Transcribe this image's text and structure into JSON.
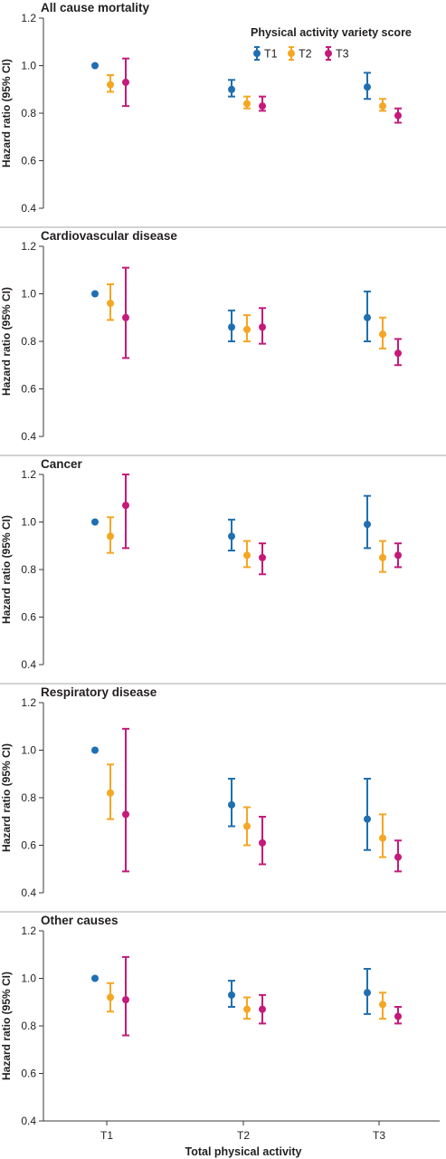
{
  "chart_data": {
    "type": "scatter",
    "subtype": "forest-plot-with-error-bars",
    "xlabel": "Total physical activity",
    "x_categories": [
      "T1",
      "T2",
      "T3"
    ],
    "legend": {
      "title": "Physical activity variety score",
      "placement": "top-right",
      "series": [
        {
          "name": "T1",
          "color": "#1f6fb2"
        },
        {
          "name": "T2",
          "color": "#f5a623"
        },
        {
          "name": "T3",
          "color": "#c51a7b"
        }
      ]
    },
    "ylabel": "Hazard ratio (95% CI)",
    "ylim": [
      0.4,
      1.2
    ],
    "yticks": [
      "0.4",
      "0.6",
      "0.8",
      "1.0",
      "1.2"
    ],
    "grid": false,
    "panels": [
      {
        "title": "All cause mortality",
        "points": {
          "T1": [
            {
              "hr": 1.0,
              "lo": null,
              "hi": null
            },
            {
              "hr": 0.9,
              "lo": 0.87,
              "hi": 0.94
            },
            {
              "hr": 0.91,
              "lo": 0.86,
              "hi": 0.97
            }
          ],
          "T2": [
            {
              "hr": 0.92,
              "lo": 0.89,
              "hi": 0.96
            },
            {
              "hr": 0.84,
              "lo": 0.82,
              "hi": 0.87
            },
            {
              "hr": 0.83,
              "lo": 0.81,
              "hi": 0.86
            }
          ],
          "T3": [
            {
              "hr": 0.93,
              "lo": 0.83,
              "hi": 1.03
            },
            {
              "hr": 0.83,
              "lo": 0.81,
              "hi": 0.87
            },
            {
              "hr": 0.79,
              "lo": 0.76,
              "hi": 0.82
            }
          ]
        }
      },
      {
        "title": "Cardiovascular disease",
        "points": {
          "T1": [
            {
              "hr": 1.0,
              "lo": null,
              "hi": null
            },
            {
              "hr": 0.86,
              "lo": 0.8,
              "hi": 0.93
            },
            {
              "hr": 0.9,
              "lo": 0.8,
              "hi": 1.01
            }
          ],
          "T2": [
            {
              "hr": 0.96,
              "lo": 0.89,
              "hi": 1.04
            },
            {
              "hr": 0.85,
              "lo": 0.8,
              "hi": 0.91
            },
            {
              "hr": 0.83,
              "lo": 0.77,
              "hi": 0.9
            }
          ],
          "T3": [
            {
              "hr": 0.9,
              "lo": 0.73,
              "hi": 1.11
            },
            {
              "hr": 0.86,
              "lo": 0.79,
              "hi": 0.94
            },
            {
              "hr": 0.75,
              "lo": 0.7,
              "hi": 0.81
            }
          ]
        }
      },
      {
        "title": "Cancer",
        "points": {
          "T1": [
            {
              "hr": 1.0,
              "lo": null,
              "hi": null
            },
            {
              "hr": 0.94,
              "lo": 0.88,
              "hi": 1.01
            },
            {
              "hr": 0.99,
              "lo": 0.89,
              "hi": 1.11
            }
          ],
          "T2": [
            {
              "hr": 0.94,
              "lo": 0.87,
              "hi": 1.02
            },
            {
              "hr": 0.86,
              "lo": 0.81,
              "hi": 0.92
            },
            {
              "hr": 0.85,
              "lo": 0.79,
              "hi": 0.92
            }
          ],
          "T3": [
            {
              "hr": 1.07,
              "lo": 0.89,
              "hi": 1.2
            },
            {
              "hr": 0.85,
              "lo": 0.78,
              "hi": 0.91
            },
            {
              "hr": 0.86,
              "lo": 0.81,
              "hi": 0.91
            }
          ]
        }
      },
      {
        "title": "Respiratory disease",
        "points": {
          "T1": [
            {
              "hr": 1.0,
              "lo": null,
              "hi": null
            },
            {
              "hr": 0.77,
              "lo": 0.68,
              "hi": 0.88
            },
            {
              "hr": 0.71,
              "lo": 0.58,
              "hi": 0.88
            }
          ],
          "T2": [
            {
              "hr": 0.82,
              "lo": 0.71,
              "hi": 0.94
            },
            {
              "hr": 0.68,
              "lo": 0.6,
              "hi": 0.76
            },
            {
              "hr": 0.63,
              "lo": 0.55,
              "hi": 0.73
            }
          ],
          "T3": [
            {
              "hr": 0.73,
              "lo": 0.49,
              "hi": 1.09
            },
            {
              "hr": 0.61,
              "lo": 0.52,
              "hi": 0.72
            },
            {
              "hr": 0.55,
              "lo": 0.49,
              "hi": 0.62
            }
          ]
        }
      },
      {
        "title": "Other causes",
        "points": {
          "T1": [
            {
              "hr": 1.0,
              "lo": null,
              "hi": null
            },
            {
              "hr": 0.93,
              "lo": 0.88,
              "hi": 0.99
            },
            {
              "hr": 0.94,
              "lo": 0.85,
              "hi": 1.04
            }
          ],
          "T2": [
            {
              "hr": 0.92,
              "lo": 0.86,
              "hi": 0.98
            },
            {
              "hr": 0.87,
              "lo": 0.83,
              "hi": 0.92
            },
            {
              "hr": 0.89,
              "lo": 0.83,
              "hi": 0.94
            }
          ],
          "T3": [
            {
              "hr": 0.91,
              "lo": 0.76,
              "hi": 1.09
            },
            {
              "hr": 0.87,
              "lo": 0.81,
              "hi": 0.93
            },
            {
              "hr": 0.84,
              "lo": 0.81,
              "hi": 0.88
            }
          ]
        }
      }
    ]
  }
}
